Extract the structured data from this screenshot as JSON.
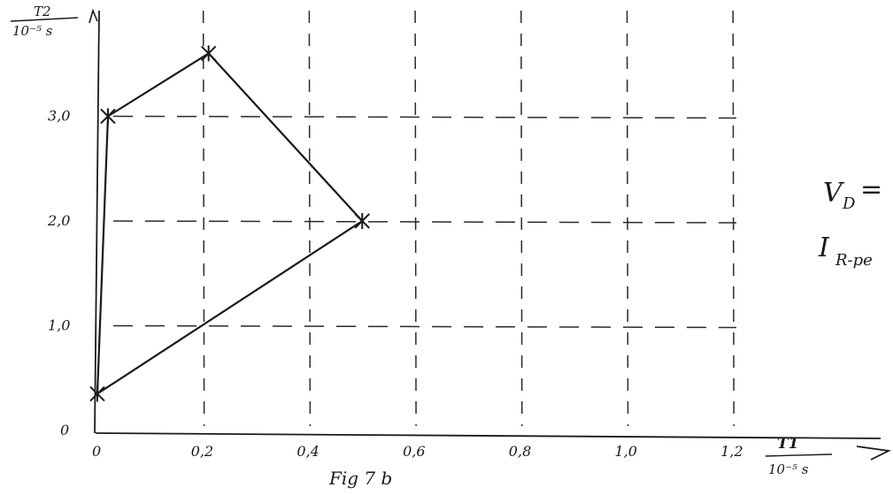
{
  "chart_data": {
    "type": "line",
    "caption": "Fig 7 b",
    "xlabel": {
      "symbol": "T1",
      "unit": "10⁻⁵ s"
    },
    "ylabel": {
      "symbol": "T2",
      "unit": "10⁻⁵ s"
    },
    "xlim": [
      0,
      1.2
    ],
    "ylim": [
      0,
      3.8
    ],
    "x_ticks": [
      0,
      0.2,
      0.4,
      0.6,
      0.8,
      1.0,
      1.2
    ],
    "x_tick_labels": [
      "0",
      "0,2",
      "0,4",
      "0,6",
      "0,8",
      "1,0",
      "1,2"
    ],
    "y_ticks": [
      0,
      1.0,
      2.0,
      3.0
    ],
    "y_tick_labels": [
      "0",
      "1,0",
      "2,0",
      "3,0"
    ],
    "grid": true,
    "grid_style": "dashed",
    "series": [
      {
        "closed": true,
        "marker": "x",
        "points": [
          {
            "x": 0.0,
            "y": 0.35
          },
          {
            "x": 0.02,
            "y": 3.0
          },
          {
            "x": 0.21,
            "y": 3.6
          },
          {
            "x": 0.5,
            "y": 2.0
          }
        ]
      }
    ],
    "annotations": [
      "V",
      "D",
      "=",
      "I",
      "R-pe"
    ]
  },
  "colors": {
    "ink": "#1a1a1a",
    "grid": "#2a2a2a",
    "background": "#ffffff"
  }
}
